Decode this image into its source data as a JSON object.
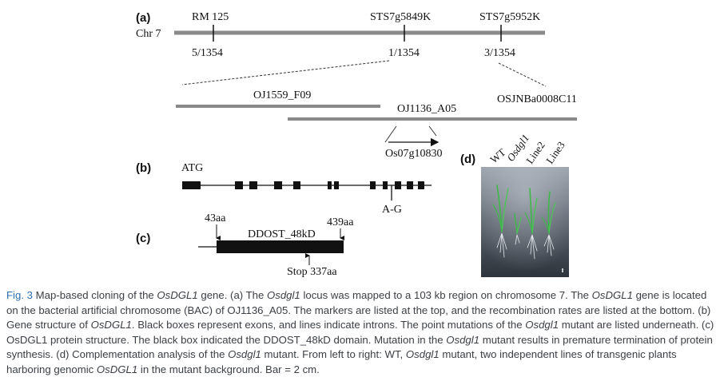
{
  "panel_a": {
    "label": "(a)",
    "chromosome": "Chr 7",
    "markers": [
      {
        "name": "RM 125",
        "rate": "5/1354"
      },
      {
        "name": "STS7g5849K",
        "rate": "1/1354"
      },
      {
        "name": "STS7g5952K",
        "rate": "3/1354"
      }
    ],
    "bacs": [
      "OJ1559_F09",
      "OJ1136_A05",
      "OSJNBa0008C11"
    ],
    "gene": "Os07g10830"
  },
  "panel_b": {
    "label": "(b)",
    "start": "ATG",
    "mutation": "A-G"
  },
  "panel_c": {
    "label": "(c)",
    "start_pos": "43aa",
    "end_pos": "439aa",
    "domain": "DDOST_48kD",
    "stop": "Stop 337aa"
  },
  "panel_d": {
    "label": "(d)",
    "lines": [
      "WT",
      "Osdgl1",
      "Line2",
      "Line3"
    ]
  },
  "caption": {
    "fig_label": "Fig. 3",
    "parts": [
      {
        "t": " Map-based cloning of the ",
        "i": false
      },
      {
        "t": "OsDGL1",
        "i": true
      },
      {
        "t": " gene. (a) The ",
        "i": false
      },
      {
        "t": "Osdgl1",
        "i": true
      },
      {
        "t": " locus was mapped to a 103 kb region on chromosome 7. The ",
        "i": false
      },
      {
        "t": "OsDGL1",
        "i": true
      },
      {
        "t": " gene is located on the bacterial artificial chromosome (BAC) of OJ1136_A05. The markers are listed at the top, and the recombination rates are listed at the bottom. (b) Gene structure of ",
        "i": false
      },
      {
        "t": "OsDGL1",
        "i": true
      },
      {
        "t": ". Black boxes represent exons, and lines indicate introns. The point mutations of the ",
        "i": false
      },
      {
        "t": "Osdgl1",
        "i": true
      },
      {
        "t": " mutant are listed underneath. (c) OsDGL1 protein structure. The black box indicated the DDOST_48kD domain. Mutation in the ",
        "i": false
      },
      {
        "t": "Osdgl1",
        "i": true
      },
      {
        "t": " mutant results in premature termination of protein synthesis. (d) Complementation analysis of the ",
        "i": false
      },
      {
        "t": "Osdgl1",
        "i": true
      },
      {
        "t": " mutant. From left to right: WT, ",
        "i": false
      },
      {
        "t": "Osdgl1",
        "i": true
      },
      {
        "t": " mutant, two independent lines of transgenic plants harboring genomic ",
        "i": false
      },
      {
        "t": "OsDGL1",
        "i": true
      },
      {
        "t": " in the mutant background. Bar = 2 cm.",
        "i": false
      }
    ]
  }
}
